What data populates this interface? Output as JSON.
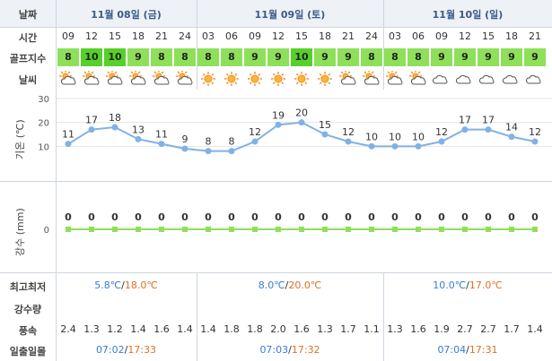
{
  "labels": {
    "date": "날짜",
    "time": "시간",
    "golf_index": "골프지수",
    "weather": "날씨",
    "temp_axis": "기온 (℃)",
    "precip_axis": "강수 (mm)",
    "minmax": "최고최저",
    "precip_amount": "강수량",
    "wind": "풍속",
    "sun": "일출일몰"
  },
  "days": [
    {
      "label": "11월 08일 (금)",
      "min": "5.8℃",
      "max": "18.0℃",
      "sunrise": "07:02",
      "sunset": "17:33"
    },
    {
      "label": "11월 09일 (토)",
      "min": "8.0℃",
      "max": "20.0℃",
      "sunrise": "07:03",
      "sunset": "17:32"
    },
    {
      "label": "11월 10일 (일)",
      "min": "10.0℃",
      "max": "17.0℃",
      "sunrise": "07:04",
      "sunset": "17:31"
    }
  ],
  "separator": "/",
  "hours": [
    "09",
    "12",
    "15",
    "18",
    "21",
    "24",
    "03",
    "06",
    "09",
    "12",
    "15",
    "18",
    "21",
    "24",
    "03",
    "06",
    "09",
    "12",
    "15",
    "18",
    "21"
  ],
  "golf": [
    "8",
    "10",
    "10",
    "9",
    "8",
    "8",
    "8",
    "8",
    "9",
    "9",
    "10",
    "9",
    "9",
    "8",
    "8",
    "8",
    "9",
    "9",
    "9",
    "9",
    "9"
  ],
  "weather_icons": [
    "partly-cloudy-icon",
    "partly-cloudy-icon",
    "partly-cloudy-icon",
    "partly-cloudy-icon",
    "partly-cloudy-icon",
    "partly-cloudy-icon",
    "sunny-icon",
    "sunny-icon",
    "sunny-icon",
    "sunny-icon",
    "sunny-icon",
    "sunny-icon",
    "partly-cloudy-icon",
    "partly-cloudy-icon",
    "partly-cloudy-icon",
    "partly-cloudy-icon",
    "cloudy-icon",
    "cloudy-icon",
    "cloudy-icon",
    "cloudy-icon",
    "cloudy-icon"
  ],
  "wind": [
    "2.4",
    "1.3",
    "1.2",
    "1.4",
    "1.6",
    "1.4",
    "1.4",
    "1.8",
    "1.8",
    "2.0",
    "1.6",
    "1.3",
    "1.7",
    "1.1",
    "1.3",
    "1.6",
    "1.9",
    "2.7",
    "2.7",
    "1.7",
    "1.4"
  ],
  "colors": {
    "header_bg": "#eef1f5",
    "golf_bg": "#8ee05a",
    "golf_top_bg": "#56d12a",
    "line": "#7fb2e5",
    "precip_line": "#8ee05a",
    "min_text": "#3a7bd5",
    "max_text": "#e0702a"
  },
  "chart_data": [
    {
      "type": "line",
      "x": [
        "09",
        "12",
        "15",
        "18",
        "21",
        "24",
        "03",
        "06",
        "09",
        "12",
        "15",
        "18",
        "21",
        "24",
        "03",
        "06",
        "09",
        "12",
        "15",
        "18",
        "21"
      ],
      "values": [
        11,
        17,
        18,
        13,
        11,
        9,
        8,
        8,
        12,
        19,
        20,
        15,
        12,
        10,
        10,
        10,
        12,
        17,
        17,
        14,
        12
      ],
      "ylabel": "기온 (℃)",
      "yticks": [
        10,
        20,
        30
      ],
      "ylim": [
        0,
        30
      ],
      "grid": true
    },
    {
      "type": "line",
      "x": [
        "09",
        "12",
        "15",
        "18",
        "21",
        "24",
        "03",
        "06",
        "09",
        "12",
        "15",
        "18",
        "21",
        "24",
        "03",
        "06",
        "09",
        "12",
        "15",
        "18",
        "21"
      ],
      "values": [
        0,
        0,
        0,
        0,
        0,
        0,
        0,
        0,
        0,
        0,
        0,
        0,
        0,
        0,
        0,
        0,
        0,
        0,
        0,
        0,
        0
      ],
      "ylabel": "강수 (mm)",
      "yticks": [
        0
      ]
    }
  ]
}
